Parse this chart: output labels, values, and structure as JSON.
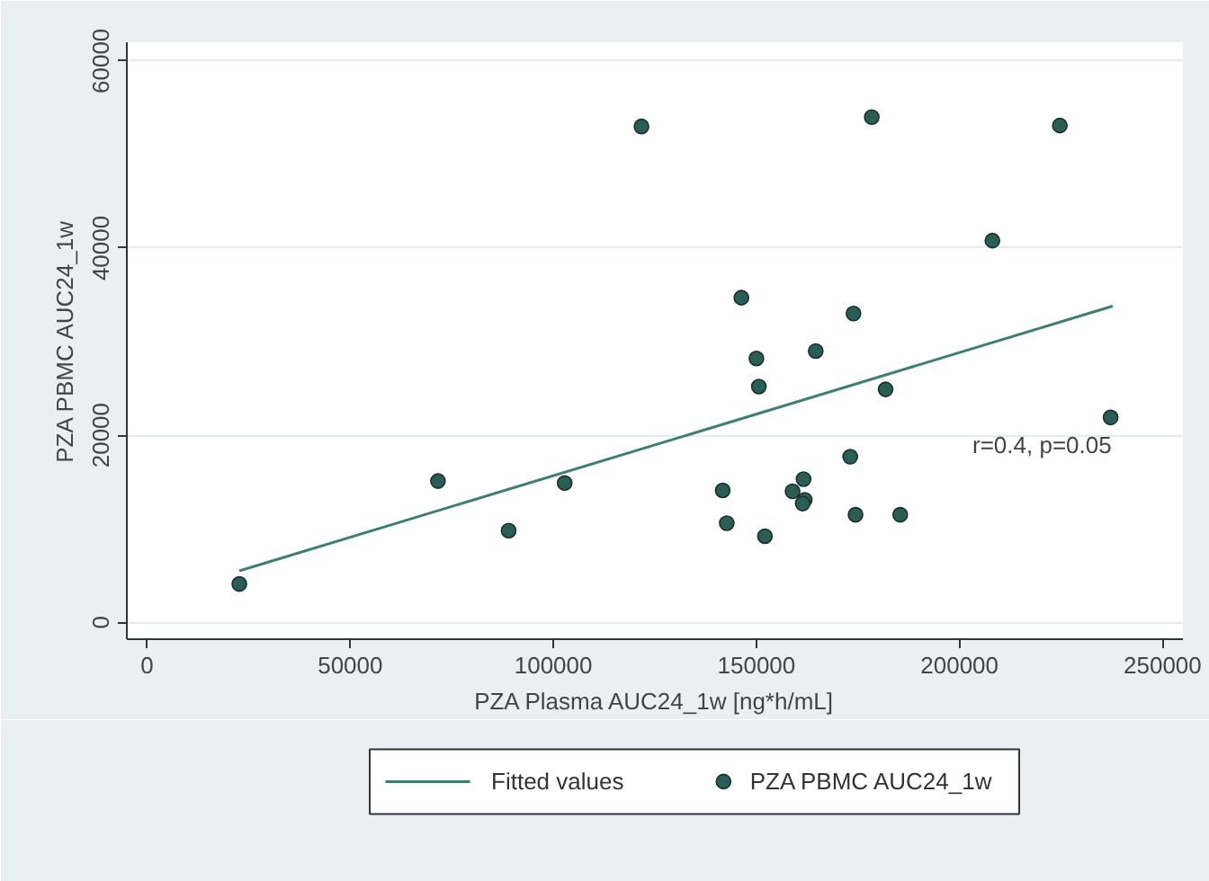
{
  "chart_data": {
    "type": "scatter",
    "xlabel": "PZA Plasma AUC24_1w [ng*h/mL]",
    "ylabel": "PZA PBMC AUC24_1w",
    "xlim": [
      -5000,
      255000
    ],
    "ylim": [
      -1800,
      62000
    ],
    "xticks": [
      0,
      50000,
      100000,
      150000,
      200000,
      250000
    ],
    "yticks": [
      0,
      20000,
      40000,
      60000
    ],
    "grid": "y",
    "legend": "bottom",
    "annotations": [
      "r=0.4, p=0.05"
    ],
    "series": [
      {
        "name": "Fitted values",
        "type": "line",
        "color": "#3f7f72",
        "line_style": "solid",
        "x": [
          22700,
          237700
        ],
        "values": [
          5500,
          33800
        ]
      },
      {
        "name": "PZA PBMC AUC24_1w",
        "color": "#2a5e55",
        "marker": "circle",
        "x": [
          22700,
          71600,
          89000,
          102800,
          121700,
          141700,
          142700,
          146300,
          150000,
          150600,
          152100,
          158900,
          161600,
          161900,
          161400,
          164600,
          173100,
          173900,
          174400,
          178400,
          181800,
          185400,
          208100,
          224700,
          237200
        ],
        "values": [
          4100,
          15100,
          9800,
          14900,
          53000,
          14100,
          10600,
          34700,
          28200,
          25200,
          9200,
          14000,
          15300,
          13100,
          12700,
          29000,
          17700,
          33000,
          11500,
          54000,
          24900,
          11500,
          40800,
          53100,
          21900
        ]
      }
    ]
  }
}
